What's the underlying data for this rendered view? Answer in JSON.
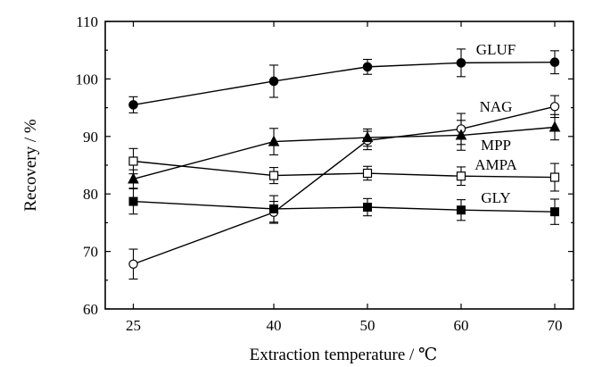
{
  "chart_data": {
    "type": "line",
    "title": "",
    "xlabel": "Extraction temperature / ℃",
    "ylabel": "Recovery / %",
    "x": [
      25,
      40,
      50,
      60,
      70
    ],
    "xlim": [
      22,
      72
    ],
    "ylim": [
      60,
      110
    ],
    "xticks": [
      25,
      40,
      50,
      60,
      70
    ],
    "yticks": [
      60,
      70,
      80,
      90,
      100,
      110
    ],
    "xtick_labels": [
      "25",
      "40",
      "50",
      "60",
      "70"
    ],
    "ytick_labels": [
      "60",
      "70",
      "80",
      "90",
      "100",
      "110"
    ],
    "grid": false,
    "series": [
      {
        "name": "GLUF",
        "marker": "filled-circle",
        "values": [
          95.5,
          99.6,
          102.1,
          102.8,
          102.9
        ],
        "errors": [
          1.4,
          2.8,
          1.3,
          2.4,
          2.0
        ]
      },
      {
        "name": "NAG",
        "marker": "open-circle",
        "values": [
          67.8,
          76.8,
          89.3,
          91.3,
          95.2
        ],
        "errors": [
          2.6,
          1.9,
          1.6,
          2.7,
          1.9
        ]
      },
      {
        "name": "MPP",
        "marker": "filled-triangle",
        "values": [
          82.6,
          89.1,
          89.8,
          90.2,
          91.6
        ],
        "errors": [
          1.6,
          2.3,
          1.5,
          2.6,
          2.2
        ]
      },
      {
        "name": "AMPA",
        "marker": "open-square",
        "values": [
          85.7,
          83.2,
          83.6,
          83.1,
          82.9
        ],
        "errors": [
          2.2,
          1.4,
          1.2,
          1.6,
          2.4
        ]
      },
      {
        "name": "GLY",
        "marker": "filled-square",
        "values": [
          78.7,
          77.4,
          77.7,
          77.2,
          76.9
        ],
        "errors": [
          2.2,
          2.3,
          1.5,
          1.8,
          2.2
        ]
      }
    ]
  }
}
